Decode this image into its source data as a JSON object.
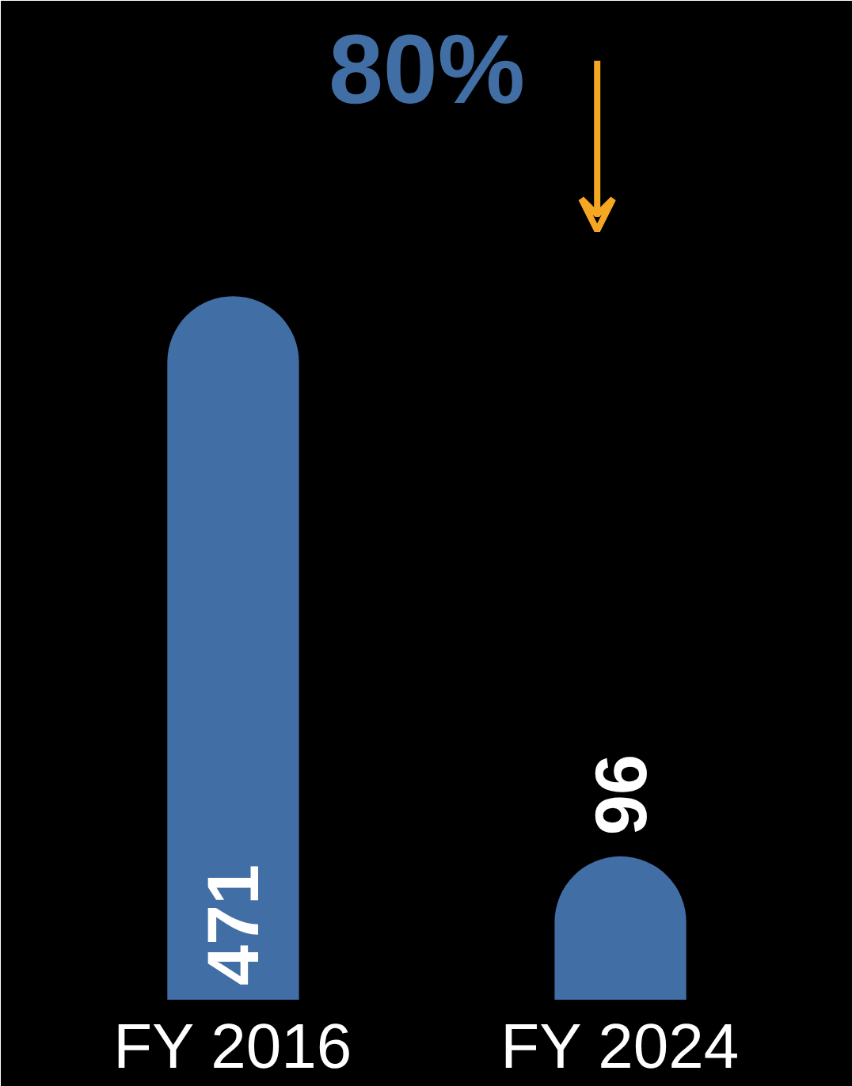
{
  "chart_data": {
    "type": "bar",
    "categories": [
      "FY 2016",
      "FY 2024"
    ],
    "values": [
      471,
      96
    ],
    "color": "#416ea4",
    "data_labels": true,
    "annotations": [
      "80%"
    ]
  }
}
